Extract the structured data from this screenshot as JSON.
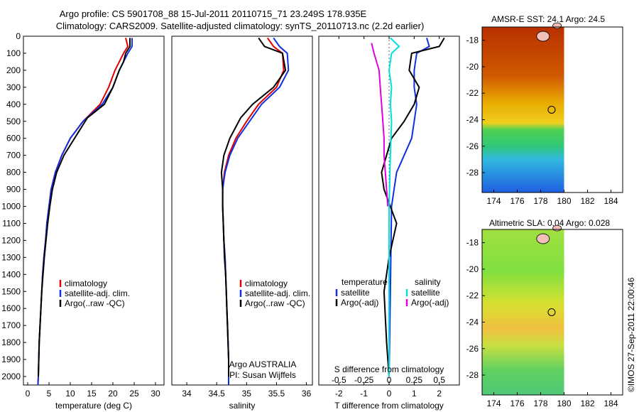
{
  "figure": {
    "title_line1": "Argo profile: CS 5901708_88 15-Jul-2011 20110715_71 23.249S 178.935E",
    "title_line2": "Climatology: CARS2009. Satellite-adjusted climatology: synTS_20110713.nc (2.2d earlier)",
    "credit": "©IMOS 27-Sep-2011 22:00:46"
  },
  "colors": {
    "climatology": "#e00000",
    "satellite": "#1030e0",
    "argo": "#000000",
    "sal_satellite": "#00e0e0",
    "sal_argo": "#e000e0"
  },
  "chart_data": [
    {
      "type": "line",
      "id": "temperature",
      "xlabel": "temperature (deg C)",
      "ylabel": "",
      "xlim": [
        -1,
        32
      ],
      "ylim": [
        2050,
        0
      ],
      "xticks": [
        0,
        5,
        10,
        15,
        20,
        25,
        30
      ],
      "yticks": [
        0,
        100,
        200,
        300,
        400,
        500,
        600,
        700,
        800,
        900,
        1000,
        1100,
        1200,
        1300,
        1400,
        1500,
        1600,
        1700,
        1800,
        1900,
        2000
      ],
      "legend": [
        "climatology",
        "satellite-adj. clim.",
        "Argo(..raw -QC)"
      ],
      "series": [
        {
          "name": "climatology",
          "color": "#e00000",
          "points": [
            [
              23,
              10
            ],
            [
              23.5,
              60
            ],
            [
              22.5,
              100
            ],
            [
              21.5,
              150
            ],
            [
              20.5,
              200
            ],
            [
              19,
              300
            ],
            [
              17,
              400
            ],
            [
              13,
              500
            ],
            [
              10,
              600
            ],
            [
              8,
              700
            ],
            [
              6.5,
              800
            ],
            [
              5.5,
              900
            ],
            [
              5,
              1000
            ],
            [
              4.5,
              1100
            ],
            [
              4.2,
              1200
            ],
            [
              3.8,
              1300
            ],
            [
              3.5,
              1400
            ],
            [
              3.3,
              1500
            ],
            [
              3.1,
              1600
            ],
            [
              2.9,
              1700
            ],
            [
              2.7,
              1800
            ],
            [
              2.6,
              1900
            ],
            [
              2.5,
              2000
            ],
            [
              2.4,
              2050
            ]
          ]
        },
        {
          "name": "satellite-adj. clim.",
          "color": "#1030e0",
          "points": [
            [
              24.5,
              10
            ],
            [
              24.5,
              60
            ],
            [
              23.5,
              100
            ],
            [
              22.5,
              150
            ],
            [
              21.5,
              200
            ],
            [
              20,
              300
            ],
            [
              17.5,
              400
            ],
            [
              13,
              500
            ],
            [
              10,
              600
            ],
            [
              8,
              700
            ],
            [
              6.5,
              800
            ],
            [
              5.5,
              900
            ],
            [
              5,
              1000
            ],
            [
              4.5,
              1100
            ],
            [
              4.2,
              1200
            ],
            [
              3.8,
              1300
            ],
            [
              3.5,
              1400
            ],
            [
              3.3,
              1500
            ],
            [
              3.1,
              1600
            ],
            [
              2.9,
              1700
            ],
            [
              2.7,
              1800
            ],
            [
              2.6,
              1900
            ],
            [
              2.5,
              2000
            ],
            [
              2.4,
              2050
            ]
          ]
        },
        {
          "name": "Argo(..raw -QC)",
          "color": "#000000",
          "points": [
            [
              24,
              10
            ],
            [
              24,
              60
            ],
            [
              23,
              100
            ],
            [
              22.5,
              150
            ],
            [
              21.5,
              200
            ],
            [
              20,
              300
            ],
            [
              18,
              400
            ],
            [
              14,
              480
            ],
            [
              11,
              600
            ],
            [
              8.5,
              700
            ],
            [
              6.8,
              800
            ],
            [
              5.8,
              900
            ],
            [
              5.2,
              1000
            ],
            [
              4.7,
              1100
            ],
            [
              4.3,
              1200
            ],
            [
              3.9,
              1300
            ],
            [
              3.6,
              1400
            ],
            [
              3.3,
              1500
            ],
            [
              3.1,
              1600
            ],
            [
              2.9,
              1700
            ],
            [
              2.7,
              1800
            ],
            [
              2.6,
              1900
            ],
            [
              2.5,
              2000
            ]
          ]
        }
      ]
    },
    {
      "type": "line",
      "id": "salinity",
      "xlabel": "salinity",
      "xlim": [
        33.75,
        36.1
      ],
      "ylim": [
        2050,
        0
      ],
      "xticks": [
        34,
        34.5,
        35,
        35.5,
        36
      ],
      "legend": [
        "climatology",
        "satellite-adj. clim.",
        "Argo(..raw -QC)"
      ],
      "annotation_line1": "Argo AUSTRALIA",
      "annotation_line2": "PI: Susan Wijffels",
      "series": [
        {
          "name": "climatology",
          "color": "#e00000",
          "points": [
            [
              35.35,
              10
            ],
            [
              35.45,
              60
            ],
            [
              35.6,
              100
            ],
            [
              35.62,
              200
            ],
            [
              35.5,
              300
            ],
            [
              35.2,
              400
            ],
            [
              35.0,
              500
            ],
            [
              34.82,
              600
            ],
            [
              34.7,
              700
            ],
            [
              34.63,
              800
            ],
            [
              34.6,
              900
            ],
            [
              34.6,
              1000
            ],
            [
              34.61,
              1100
            ],
            [
              34.62,
              1200
            ],
            [
              34.64,
              1300
            ],
            [
              34.65,
              1400
            ],
            [
              34.66,
              1500
            ],
            [
              34.67,
              1600
            ],
            [
              34.68,
              1700
            ],
            [
              34.69,
              1800
            ],
            [
              34.7,
              1900
            ],
            [
              34.7,
              2000
            ],
            [
              34.7,
              2050
            ]
          ]
        },
        {
          "name": "satellite-adj. clim.",
          "color": "#1030e0",
          "points": [
            [
              35.45,
              10
            ],
            [
              35.55,
              60
            ],
            [
              35.68,
              100
            ],
            [
              35.7,
              200
            ],
            [
              35.55,
              300
            ],
            [
              35.25,
              400
            ],
            [
              35.05,
              500
            ],
            [
              34.85,
              600
            ],
            [
              34.72,
              700
            ],
            [
              34.64,
              800
            ],
            [
              34.6,
              900
            ],
            [
              34.6,
              1000
            ],
            [
              34.61,
              1100
            ],
            [
              34.62,
              1200
            ],
            [
              34.64,
              1300
            ],
            [
              34.65,
              1400
            ],
            [
              34.66,
              1500
            ],
            [
              34.67,
              1600
            ],
            [
              34.68,
              1700
            ],
            [
              34.69,
              1800
            ],
            [
              34.7,
              1900
            ],
            [
              34.7,
              2000
            ],
            [
              34.7,
              2050
            ]
          ]
        },
        {
          "name": "Argo(..raw -QC)",
          "color": "#000000",
          "points": [
            [
              35.2,
              10
            ],
            [
              35.3,
              60
            ],
            [
              35.6,
              100
            ],
            [
              35.65,
              200
            ],
            [
              35.45,
              300
            ],
            [
              35.1,
              400
            ],
            [
              34.9,
              480
            ],
            [
              34.72,
              600
            ],
            [
              34.62,
              700
            ],
            [
              34.58,
              800
            ],
            [
              34.6,
              900
            ],
            [
              34.6,
              1000
            ],
            [
              34.61,
              1100
            ],
            [
              34.62,
              1200
            ],
            [
              34.63,
              1300
            ],
            [
              34.65,
              1400
            ],
            [
              34.66,
              1500
            ],
            [
              34.67,
              1600
            ],
            [
              34.68,
              1700
            ],
            [
              34.69,
              1800
            ],
            [
              34.7,
              1900
            ],
            [
              34.7,
              2000
            ]
          ]
        }
      ]
    },
    {
      "type": "line",
      "id": "difference",
      "xlabel": "T difference from climatology",
      "xlabel_top": "S difference from climatology",
      "xlim": [
        -2.8,
        2.8
      ],
      "ylim": [
        2050,
        0
      ],
      "xticks": [
        -2,
        -1,
        0,
        1,
        2
      ],
      "xticks_s_labels": [
        "-0.5",
        "-0.25",
        "0",
        "0.25",
        "0.5"
      ],
      "legend_temperature_title": "temperature",
      "legend_temperature": [
        "satellite",
        "Argo(-adj)"
      ],
      "legend_salinity_title": "salinity",
      "legend_salinity": [
        "satellite",
        "Argo(-adj)"
      ],
      "series": [
        {
          "name": "satellite",
          "group": "temperature",
          "color": "#1030e0",
          "points": [
            [
              1.5,
              10
            ],
            [
              1.6,
              60
            ],
            [
              1.1,
              100
            ],
            [
              1.0,
              200
            ],
            [
              1.0,
              300
            ],
            [
              1.1,
              400
            ],
            [
              1.0,
              500
            ],
            [
              0.9,
              600
            ],
            [
              0.6,
              700
            ],
            [
              0.3,
              800
            ],
            [
              0.1,
              1000
            ],
            [
              0.05,
              1500
            ],
            [
              0,
              2000
            ]
          ]
        },
        {
          "name": "Argo(-adj)",
          "group": "temperature",
          "color": "#000000",
          "points": [
            [
              2.2,
              10
            ],
            [
              2.0,
              60
            ],
            [
              0.9,
              100
            ],
            [
              0.8,
              200
            ],
            [
              1.2,
              300
            ],
            [
              1.0,
              400
            ],
            [
              0.6,
              500
            ],
            [
              0.1,
              600
            ],
            [
              -0.3,
              800
            ],
            [
              -0.2,
              900
            ],
            [
              0.3,
              1100
            ],
            [
              0.0,
              1300
            ],
            [
              -0.2,
              1500
            ],
            [
              -0.1,
              1800
            ],
            [
              0,
              2000
            ]
          ]
        },
        {
          "name": "satellite",
          "group": "salinity",
          "color": "#00e0e0",
          "points": [
            [
              0.05,
              10
            ],
            [
              0.4,
              60
            ],
            [
              0.1,
              100
            ],
            [
              0.0,
              200
            ],
            [
              0.1,
              300
            ],
            [
              0.05,
              400
            ],
            [
              0.1,
              500
            ],
            [
              0.05,
              700
            ],
            [
              0,
              1000
            ],
            [
              0,
              2000
            ]
          ]
        },
        {
          "name": "Argo(-adj)",
          "group": "salinity",
          "color": "#e000e0",
          "points": [
            [
              -0.7,
              40
            ],
            [
              -0.6,
              100
            ],
            [
              -0.4,
              200
            ],
            [
              -0.35,
              300
            ],
            [
              -0.3,
              400
            ],
            [
              -0.25,
              500
            ],
            [
              -0.2,
              600
            ],
            [
              -0.2,
              700
            ],
            [
              -0.15,
              800
            ],
            [
              -0.1,
              900
            ],
            [
              -0.05,
              1000
            ]
          ]
        }
      ]
    },
    {
      "type": "heatmap",
      "id": "amsre-sst",
      "title": "AMSR-E SST: 24.1 Argo: 24.5",
      "xlim": [
        173,
        185
      ],
      "ylim": [
        -29.5,
        -17
      ],
      "xticks": [
        174,
        176,
        178,
        180,
        182,
        184
      ],
      "yticks": [
        -18,
        -20,
        -22,
        -24,
        -26,
        -28
      ],
      "data_xrange": [
        173,
        180
      ],
      "profile_location": [
        178.935,
        -23.249
      ],
      "description_bands": [
        {
          "lat_from": -17,
          "lat_to": -21.5,
          "color": "#c84800"
        },
        {
          "lat_from": -21.5,
          "lat_to": -24,
          "color": "#e8b000"
        },
        {
          "lat_from": -24,
          "lat_to": -26,
          "color": "#3ccc3c"
        },
        {
          "lat_from": -26,
          "lat_to": -29.5,
          "color": "#30a8e8"
        }
      ]
    },
    {
      "type": "heatmap",
      "id": "altimetric-sla",
      "title": "Altimetric SLA: 0.04 Argo: 0.028",
      "xlim": [
        173,
        185
      ],
      "ylim": [
        -29.5,
        -17
      ],
      "xticks": [
        174,
        176,
        178,
        180,
        182,
        184
      ],
      "yticks": [
        -18,
        -20,
        -22,
        -24,
        -26,
        -28
      ],
      "data_xrange": [
        173,
        180
      ],
      "profile_location": [
        178.935,
        -23.249
      ]
    }
  ]
}
